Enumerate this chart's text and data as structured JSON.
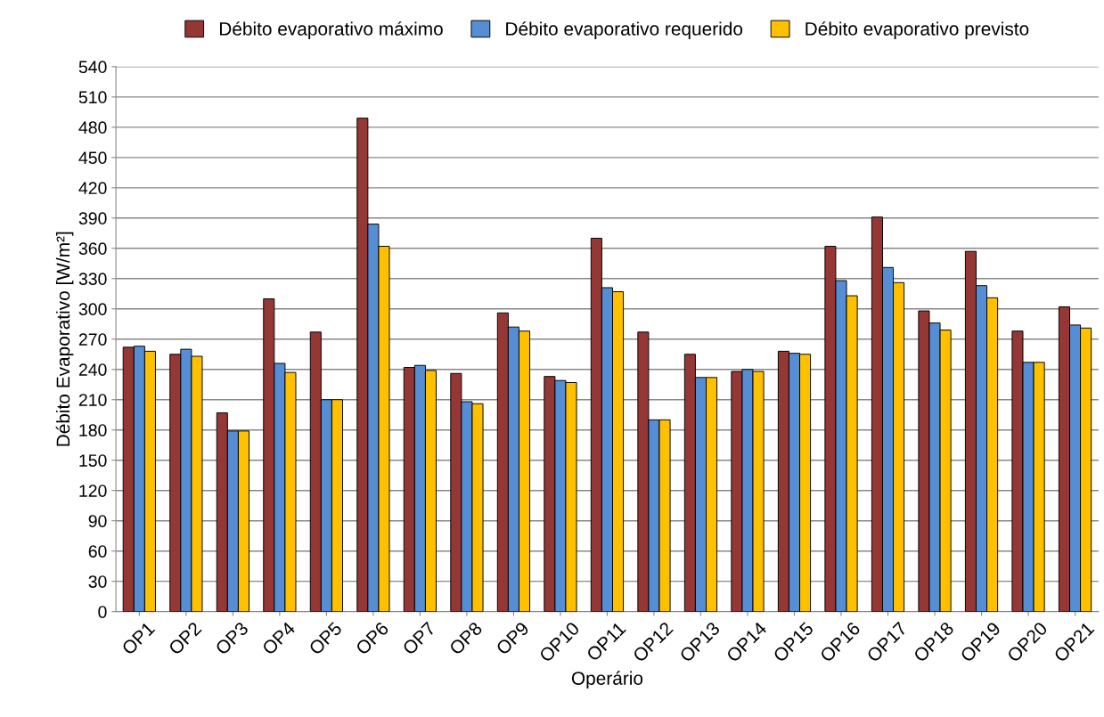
{
  "chart_data": {
    "type": "bar",
    "xlabel": "Operário",
    "ylabel": "Débito Evaporativo [W/m²]",
    "categories": [
      "OP1",
      "OP2",
      "OP3",
      "OP4",
      "OP5",
      "OP6",
      "OP7",
      "OP8",
      "OP9",
      "OP10",
      "OP11",
      "OP12",
      "OP13",
      "OP14",
      "OP15",
      "OP16",
      "OP17",
      "OP18",
      "OP19",
      "OP20",
      "OP21"
    ],
    "series": [
      {
        "name": "Débito evaporativo máximo",
        "color": "#953735",
        "values": [
          262,
          255,
          197,
          310,
          277,
          489,
          242,
          236,
          296,
          233,
          370,
          277,
          255,
          238,
          258,
          362,
          391,
          298,
          357,
          278,
          302
        ]
      },
      {
        "name": "Débito evaporativo requerido",
        "color": "#558ed5",
        "values": [
          263,
          260,
          179,
          246,
          210,
          384,
          244,
          208,
          282,
          229,
          321,
          190,
          232,
          240,
          256,
          328,
          341,
          286,
          323,
          247,
          284
        ]
      },
      {
        "name": "Débito evaporativo previsto",
        "color": "#ffc000",
        "values": [
          258,
          253,
          179,
          237,
          210,
          362,
          239,
          206,
          278,
          227,
          317,
          190,
          232,
          238,
          255,
          313,
          326,
          279,
          311,
          247,
          281
        ]
      }
    ],
    "ylim": [
      0,
      540
    ],
    "yticks": [
      0,
      30,
      60,
      90,
      120,
      150,
      180,
      210,
      240,
      270,
      300,
      330,
      360,
      390,
      420,
      450,
      480,
      510,
      540
    ],
    "grid": "y",
    "legend": "top"
  }
}
